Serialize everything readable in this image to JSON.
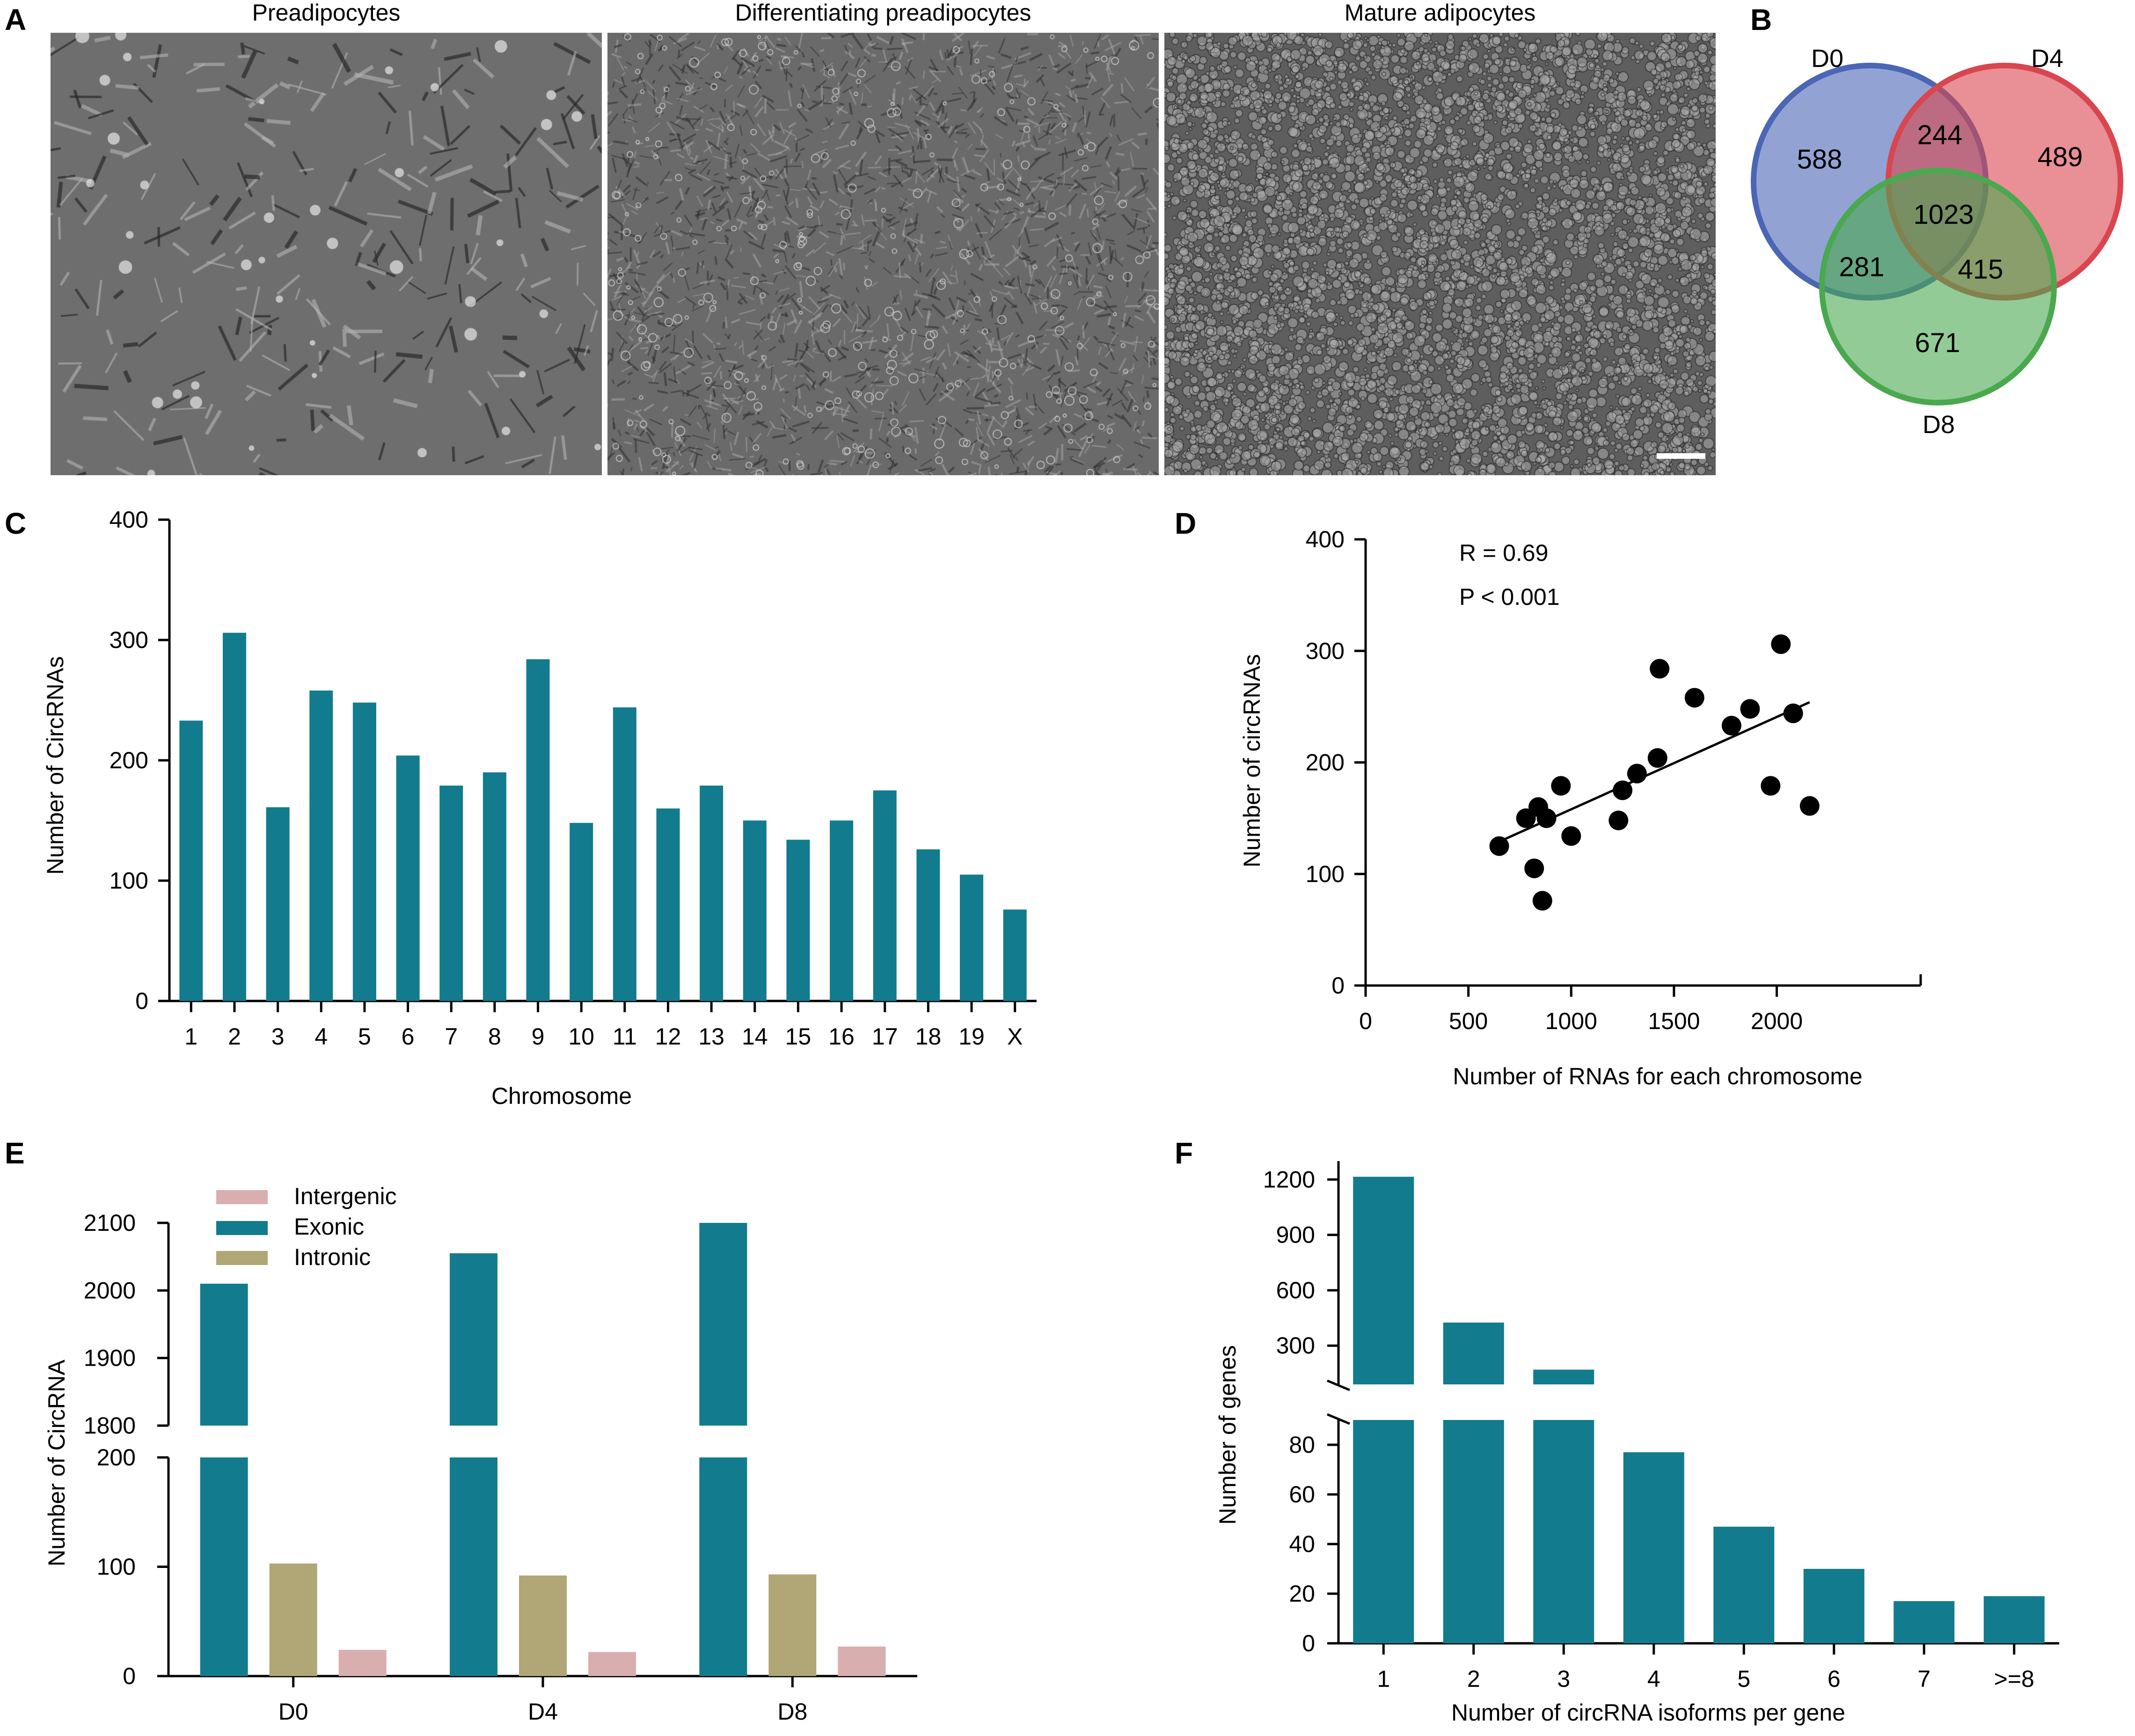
{
  "panel_letters": {
    "a": "A",
    "b": "B",
    "c": "C",
    "d": "D",
    "e": "E",
    "f": "F"
  },
  "colors": {
    "teal": "#137b8e",
    "khaki": "#b0a676",
    "pink": "#d9aeae",
    "venn_d0": "#4a66b5",
    "venn_d4": "#d9464f",
    "venn_d8": "#4aa84f"
  },
  "panel_a": {
    "images": [
      "Preadipocytes",
      "Differentiating preadipocytes",
      "Mature adipocytes"
    ],
    "scale_bar": "scale-bar"
  },
  "chart_data": [
    {
      "panel": "B",
      "type": "venn",
      "sets": [
        "D0",
        "D4",
        "D8"
      ],
      "regions": {
        "D0_only": "588",
        "D4_only": "489",
        "D8_only": "671",
        "D0_D4": "244",
        "D0_D8": "281",
        "D4_D8": "415",
        "all": "1023"
      }
    },
    {
      "panel": "C",
      "type": "bar",
      "title": "",
      "xlabel": "Chromosome",
      "ylabel": "Number of CircRNAs",
      "ylim": [
        0,
        400
      ],
      "yticks": [
        "0",
        "100",
        "200",
        "300",
        "400"
      ],
      "categories": [
        "1",
        "2",
        "3",
        "4",
        "5",
        "6",
        "7",
        "8",
        "9",
        "10",
        "11",
        "12",
        "13",
        "14",
        "15",
        "16",
        "17",
        "18",
        "19",
        "X"
      ],
      "values": [
        233,
        306,
        161,
        258,
        248,
        204,
        179,
        190,
        284,
        148,
        244,
        160,
        179,
        150,
        134,
        150,
        175,
        126,
        105,
        76
      ]
    },
    {
      "panel": "D",
      "type": "scatter",
      "xlabel": "Number of RNAs for each chromosome",
      "ylabel": "Number of circRNAs",
      "xlim": [
        0,
        2700
      ],
      "ylim": [
        0,
        400
      ],
      "xticks": [
        "0",
        "500",
        "1000",
        "1500",
        "2000"
      ],
      "yticks": [
        "0",
        "100",
        "200",
        "300",
        "400"
      ],
      "annotations": [
        "R = 0.69",
        "P < 0.001"
      ],
      "points": [
        [
          650,
          125
        ],
        [
          780,
          150
        ],
        [
          820,
          105
        ],
        [
          840,
          160
        ],
        [
          860,
          76
        ],
        [
          880,
          150
        ],
        [
          950,
          179
        ],
        [
          1000,
          134
        ],
        [
          1230,
          148
        ],
        [
          1250,
          175
        ],
        [
          1320,
          190
        ],
        [
          1420,
          204
        ],
        [
          1430,
          284
        ],
        [
          1600,
          258
        ],
        [
          1780,
          233
        ],
        [
          1870,
          248
        ],
        [
          1970,
          179
        ],
        [
          2020,
          306
        ],
        [
          2080,
          244
        ],
        [
          2160,
          161
        ]
      ],
      "fit": {
        "x": [
          650,
          2160
        ],
        "y": [
          129,
          254
        ]
      }
    },
    {
      "panel": "E",
      "type": "bar",
      "xlabel": "",
      "ylabel": "Number of CircRNA",
      "categories": [
        "D0",
        "D4",
        "D8"
      ],
      "broken_axis": {
        "lower": [
          0,
          200
        ],
        "upper": [
          1800,
          2100
        ]
      },
      "yticks_lower": [
        "0",
        "100",
        "200"
      ],
      "yticks_upper": [
        "1800",
        "1900",
        "2000",
        "2100"
      ],
      "series": [
        {
          "name": "Exonic",
          "values": [
            2010,
            2055,
            2100
          ]
        },
        {
          "name": "Intronic",
          "values": [
            103,
            92,
            93
          ]
        },
        {
          "name": "Intergenic",
          "values": [
            24,
            22,
            27
          ]
        }
      ],
      "legend": [
        "Intergenic",
        "Exonic",
        "Intronic"
      ],
      "legend_position": "top-left"
    },
    {
      "panel": "F",
      "type": "bar",
      "xlabel": "Number of circRNA isoforms per gene",
      "ylabel": "Number of genes",
      "categories": [
        "1",
        "2",
        "3",
        "4",
        "5",
        "6",
        "7",
        ">=8"
      ],
      "values": [
        1215,
        425,
        170,
        77,
        47,
        30,
        17,
        19
      ],
      "broken_axis": {
        "lower": [
          0,
          90
        ],
        "upper": [
          90,
          1300
        ]
      },
      "yticks_lower": [
        "0",
        "20",
        "40",
        "60",
        "80"
      ],
      "yticks_upper": [
        "300",
        "600",
        "900",
        "1200"
      ]
    }
  ]
}
